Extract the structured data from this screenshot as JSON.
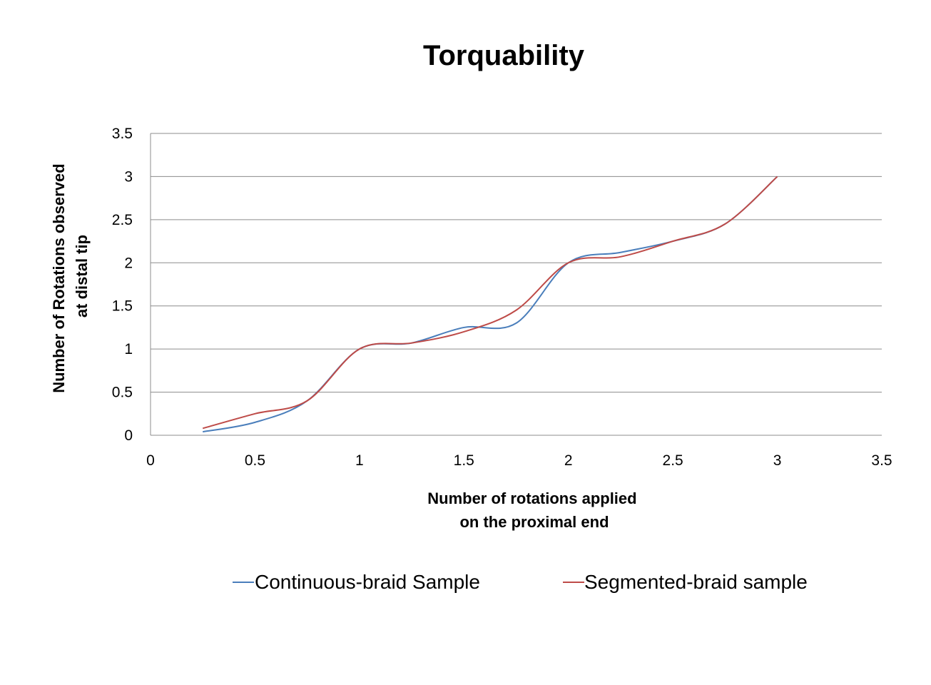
{
  "chart_data": {
    "type": "line",
    "title": "Torquability",
    "xlabel": [
      "Number of rotations applied",
      "on the proximal end"
    ],
    "ylabel": [
      "Number of Rotations observed",
      "at distal tip"
    ],
    "xlim": [
      0,
      3.5
    ],
    "ylim": [
      0,
      3.5
    ],
    "xticks": [
      0,
      0.5,
      1,
      1.5,
      2,
      2.5,
      3,
      3.5
    ],
    "yticks": [
      0,
      0.5,
      1,
      1.5,
      2,
      2.5,
      3,
      3.5
    ],
    "xtick_labels": [
      "0",
      "0.5",
      "1",
      "1.5",
      "2",
      "2.5",
      "3",
      "3.5"
    ],
    "ytick_labels": [
      "0",
      "0.5",
      "1",
      "1.5",
      "2",
      "2.5",
      "3",
      "3.5"
    ],
    "grid": "horizontal",
    "legend_position": "bottom",
    "series": [
      {
        "name": "Continuous-braid Sample",
        "color": "#4a7ebb",
        "x": [
          0.25,
          0.5,
          0.75,
          1,
          1.25,
          1.5,
          1.75,
          2,
          2.25,
          2.5,
          2.75,
          3
        ],
        "y": [
          0.04,
          0.15,
          0.4,
          1.0,
          1.07,
          1.25,
          1.3,
          2.0,
          2.12,
          2.25,
          2.45,
          3.0
        ]
      },
      {
        "name": "Segmented-braid sample",
        "color": "#be4b48",
        "x": [
          0.25,
          0.5,
          0.75,
          1,
          1.25,
          1.5,
          1.75,
          2,
          2.25,
          2.5,
          2.75,
          3
        ],
        "y": [
          0.08,
          0.25,
          0.4,
          1.0,
          1.07,
          1.2,
          1.45,
          2.0,
          2.07,
          2.25,
          2.45,
          3.0
        ]
      }
    ]
  }
}
